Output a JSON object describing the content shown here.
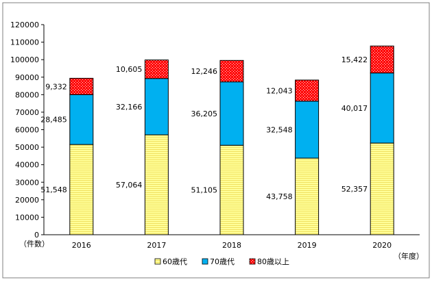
{
  "chart_data": {
    "type": "bar",
    "stacked": true,
    "categories": [
      "2016",
      "2017",
      "2018",
      "2019",
      "2020"
    ],
    "series": [
      {
        "name": "60歳代",
        "values": [
          51548,
          57064,
          51105,
          43758,
          52357
        ],
        "labels": [
          "51,548",
          "57,064",
          "51,105",
          "43,758",
          "52,357"
        ],
        "color": "#ffff99",
        "pattern": "horizontal-stripes"
      },
      {
        "name": "70歳代",
        "values": [
          28485,
          32166,
          36205,
          32548,
          40017
        ],
        "labels": [
          "28,485",
          "32,166",
          "36,205",
          "32,548",
          "40,017"
        ],
        "color": "#00b0f0",
        "pattern": "solid"
      },
      {
        "name": "80歳以上",
        "values": [
          9332,
          10605,
          12246,
          12043,
          15422
        ],
        "labels": [
          "9,332",
          "10,605",
          "12,246",
          "12,043",
          "15,422"
        ],
        "color": "#ff0000",
        "pattern": "dotted"
      }
    ],
    "yticks": [
      "0",
      "10000",
      "20000",
      "30000",
      "40000",
      "50000",
      "60000",
      "70000",
      "80000",
      "90000",
      "100000",
      "110000",
      "120000"
    ],
    "ylim": [
      0,
      120000
    ],
    "ylabel": "（件数）",
    "xlabel": "（年度）",
    "grid": false,
    "legend_position": "bottom-center"
  }
}
